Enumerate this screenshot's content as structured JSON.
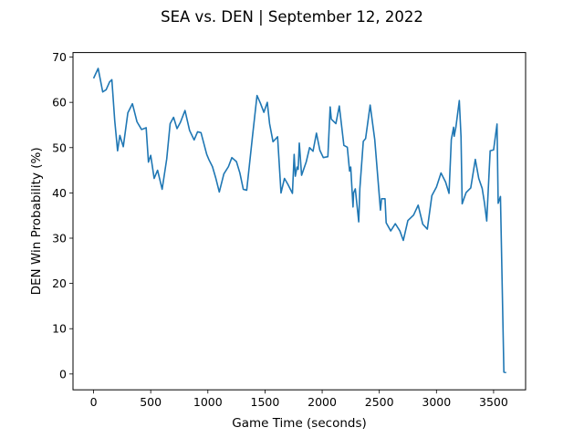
{
  "chart_data": {
    "type": "line",
    "title": "SEA vs. DEN | September 12, 2022",
    "xlabel": "Game Time (seconds)",
    "ylabel": "DEN Win Probability (%)",
    "xlim": [
      -180,
      3780
    ],
    "ylim": [
      -3.5,
      71
    ],
    "xticks": [
      0,
      500,
      1000,
      1500,
      2000,
      2500,
      3000,
      3500
    ],
    "yticks": [
      0,
      10,
      20,
      30,
      40,
      50,
      60,
      70
    ],
    "grid": false,
    "line_color": "#1f77b4",
    "series": [
      {
        "x": [
          0,
          40,
          80,
          110,
          140,
          160,
          185,
          210,
          230,
          260,
          300,
          340,
          380,
          420,
          460,
          480,
          500,
          530,
          560,
          600,
          640,
          670,
          700,
          730,
          760,
          800,
          840,
          880,
          910,
          940,
          990,
          1010,
          1040,
          1070,
          1100,
          1140,
          1180,
          1210,
          1250,
          1280,
          1310,
          1340,
          1390,
          1430,
          1460,
          1490,
          1520,
          1540,
          1570,
          1610,
          1640,
          1670,
          1700,
          1740,
          1755,
          1765,
          1780,
          1790,
          1800,
          1820,
          1860,
          1890,
          1920,
          1950,
          1980,
          2010,
          2050,
          2070,
          2080,
          2120,
          2150,
          2190,
          2220,
          2240,
          2250,
          2270,
          2275,
          2290,
          2320,
          2330,
          2360,
          2380,
          2420,
          2460,
          2510,
          2520,
          2550,
          2560,
          2600,
          2640,
          2680,
          2710,
          2750,
          2800,
          2840,
          2880,
          2920,
          2960,
          3000,
          3040,
          3080,
          3110,
          3130,
          3150,
          3155,
          3170,
          3200,
          3215,
          3225,
          3260,
          3300,
          3340,
          3370,
          3400,
          3420,
          3440,
          3470,
          3500,
          3530,
          3540,
          3560,
          3590,
          3610
        ],
        "y": [
          65.3,
          67.5,
          62.3,
          62.8,
          64.5,
          65,
          56,
          49.3,
          52.7,
          50.2,
          57.7,
          59.7,
          55.7,
          54,
          54.4,
          46.8,
          48.3,
          43.2,
          45,
          40.8,
          47.5,
          55.3,
          56.7,
          54.2,
          55.6,
          58.2,
          53.8,
          51.7,
          53.5,
          53.3,
          48.5,
          47.3,
          45.8,
          43.2,
          40.2,
          44.2,
          45.8,
          47.8,
          46.9,
          44.4,
          40.8,
          40.6,
          52.4,
          61.5,
          59.8,
          57.8,
          60,
          55.3,
          51.3,
          52.4,
          40,
          43.2,
          41.9,
          39.9,
          48.5,
          43.7,
          45.7,
          45.2,
          51,
          43.9,
          46.8,
          50,
          49.2,
          53.2,
          49.4,
          47.8,
          48,
          59,
          56.3,
          55.3,
          59.2,
          50.5,
          50.1,
          44.8,
          45.7,
          36.9,
          40,
          40.9,
          33.6,
          41,
          51.4,
          52,
          59.4,
          51.8,
          36.2,
          38.7,
          38.7,
          33.4,
          31.6,
          33.2,
          31.6,
          29.5,
          33.9,
          35.1,
          37.3,
          33.1,
          32,
          39.4,
          41.3,
          44.4,
          42.4,
          39.9,
          51.8,
          54.5,
          52.5,
          54.5,
          60.4,
          52.4,
          37.6,
          40.1,
          41.1,
          47.4,
          43.2,
          41,
          37.8,
          33.8,
          49.3,
          49.5,
          55.2,
          37.7,
          39.2,
          0.4,
          0.3
        ]
      }
    ]
  }
}
